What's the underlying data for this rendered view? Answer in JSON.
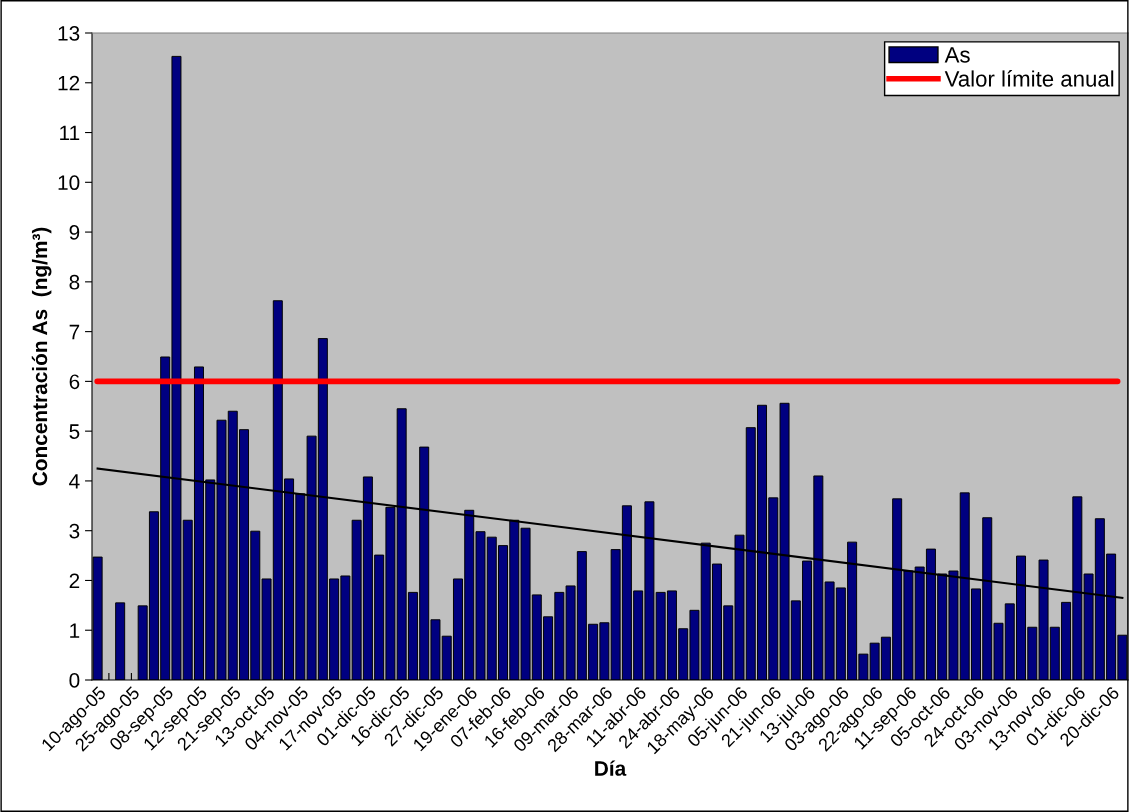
{
  "chart_data": {
    "type": "bar",
    "xlabel": "Día",
    "ylabel": "Concentración As  (ng/m³)",
    "categories": [
      "10-ago-05",
      null,
      null,
      "25-ago-05",
      null,
      null,
      "08-sep-05",
      null,
      null,
      "12-sep-05",
      null,
      null,
      "21-sep-05",
      null,
      null,
      "13-oct-05",
      null,
      null,
      "04-nov-05",
      null,
      null,
      "17-nov-05",
      null,
      null,
      "01-dic-05",
      null,
      null,
      "16-dic-05",
      null,
      null,
      "27-dic-05",
      null,
      null,
      "19-ene-06",
      null,
      null,
      "07-feb-06",
      null,
      null,
      "16-feb-06",
      null,
      null,
      "09-mar-06",
      null,
      null,
      "28-mar-06",
      null,
      null,
      "11-abr-06",
      null,
      null,
      "24-abr-06",
      null,
      null,
      "18-may-06",
      null,
      null,
      "05-jun-06",
      null,
      null,
      "21-jun-06",
      null,
      null,
      "13-jul-06",
      null,
      null,
      "03-ago-06",
      null,
      null,
      "22-ago-06",
      null,
      null,
      "11-sep-06",
      null,
      null,
      "05-oct-06",
      null,
      null,
      "24-oct-06",
      null,
      null,
      "03-nov-06",
      null,
      null,
      "13-nov-06",
      null,
      null,
      "01-dic-06",
      null,
      null,
      "20-dic-06",
      null
    ],
    "series": [
      {
        "name": "As",
        "color": "#000080",
        "values": [
          2.47,
          null,
          1.55,
          null,
          1.49,
          3.38,
          6.49,
          12.53,
          3.21,
          6.29,
          4.02,
          5.22,
          5.4,
          5.03,
          2.99,
          2.03,
          7.62,
          4.04,
          3.74,
          4.9,
          6.86,
          2.03,
          2.09,
          3.21,
          4.08,
          2.51,
          3.47,
          5.45,
          1.76,
          4.68,
          1.21,
          0.88,
          2.03,
          3.41,
          2.98,
          2.87,
          2.7,
          3.21,
          3.05,
          1.71,
          1.27,
          1.76,
          1.89,
          2.58,
          1.12,
          1.15,
          2.62,
          3.5,
          1.79,
          3.58,
          1.76,
          1.79,
          1.03,
          1.4,
          2.75,
          2.33,
          1.49,
          2.91,
          5.07,
          5.52,
          3.66,
          5.56,
          1.59,
          2.39,
          4.1,
          1.97,
          1.85,
          2.77,
          0.52,
          0.74,
          0.86,
          3.64,
          2.19,
          2.27,
          2.63,
          2.13,
          2.19,
          3.76,
          1.83,
          3.26,
          1.14,
          1.53,
          2.49,
          1.06,
          2.41,
          1.06,
          1.56,
          3.68,
          2.13,
          3.24,
          2.53,
          0.9
        ]
      },
      {
        "type": "line",
        "color": "#000000",
        "values": [
          4.25,
          null,
          null,
          null,
          null,
          null,
          null,
          null,
          null,
          null,
          null,
          null,
          null,
          null,
          null,
          null,
          null,
          null,
          null,
          null,
          null,
          null,
          null,
          null,
          null,
          null,
          null,
          null,
          null,
          null,
          null,
          null,
          null,
          null,
          null,
          null,
          null,
          null,
          null,
          null,
          null,
          null,
          null,
          null,
          null,
          null,
          null,
          null,
          null,
          null,
          null,
          null,
          null,
          null,
          null,
          null,
          null,
          null,
          null,
          null,
          null,
          null,
          null,
          null,
          null,
          null,
          null,
          null,
          null,
          null,
          null,
          null,
          null,
          null,
          null,
          null,
          null,
          null,
          null,
          null,
          null,
          null,
          null,
          null,
          null,
          null,
          null,
          null,
          null,
          null,
          null,
          1.65
        ]
      }
    ],
    "ref_lines": [
      {
        "axis": "y",
        "value": 6,
        "label": "Valor límite anual",
        "color": "#ff0000",
        "line_style": "solid"
      }
    ],
    "ylim": [
      0,
      13
    ],
    "yticks": [
      0,
      1,
      2,
      3,
      4,
      5,
      6,
      7,
      8,
      9,
      10,
      11,
      12,
      13
    ],
    "grid": false,
    "legend": "top right"
  }
}
